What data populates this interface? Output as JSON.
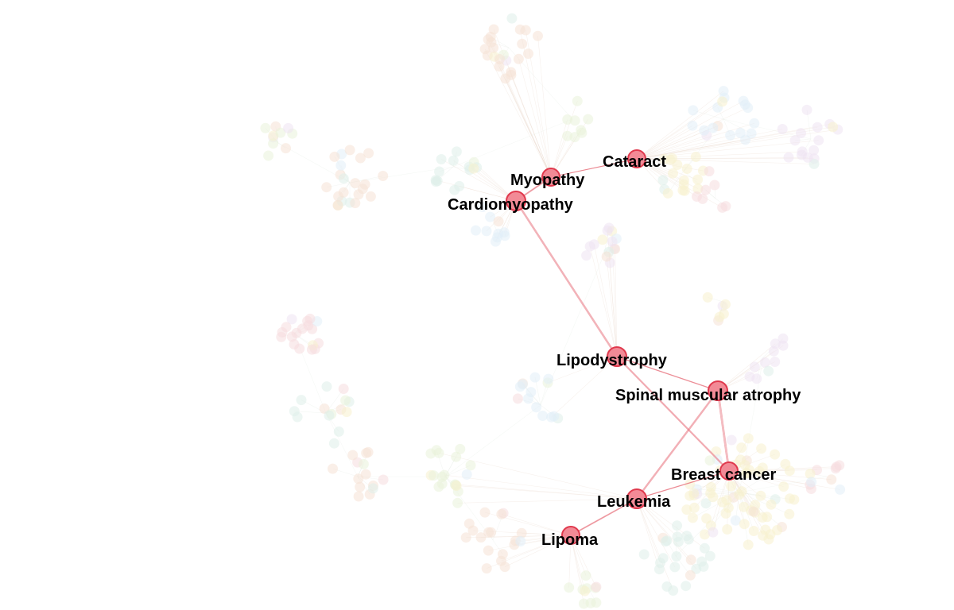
{
  "graph": {
    "highlighted_nodes": [
      {
        "id": "cataract",
        "label": "Cataract"
      },
      {
        "id": "myopathy",
        "label": "Myopathy"
      },
      {
        "id": "cardiomyopathy",
        "label": "Cardiomyopathy"
      },
      {
        "id": "lipodystrophy",
        "label": "Lipodystrophy"
      },
      {
        "id": "spinal-muscular-atrophy",
        "label": "Spinal muscular atrophy"
      },
      {
        "id": "breast-cancer",
        "label": "Breast cancer"
      },
      {
        "id": "leukemia",
        "label": "Leukemia"
      },
      {
        "id": "lipoma",
        "label": "Lipoma"
      }
    ],
    "highlighted_edges": [
      [
        "myopathy",
        "cataract"
      ],
      [
        "myopathy",
        "cardiomyopathy"
      ],
      [
        "cardiomyopathy",
        "lipodystrophy"
      ],
      [
        "lipodystrophy",
        "spinal-muscular-atrophy"
      ],
      [
        "lipodystrophy",
        "breast-cancer"
      ],
      [
        "spinal-muscular-atrophy",
        "breast-cancer"
      ],
      [
        "breast-cancer",
        "leukemia"
      ],
      [
        "leukemia",
        "lipoma"
      ],
      [
        "leukemia",
        "spinal-muscular-atrophy"
      ]
    ],
    "colors": {
      "hub_fill": "#f28a96",
      "hub_stroke": "#e0394d",
      "hub_edge": "#e8747f",
      "background_palette": [
        "#f6e3d6",
        "#eaf3db",
        "#e2eff9",
        "#efe4f3",
        "#f8f2cf",
        "#f7dde0",
        "#dff0ea"
      ]
    }
  }
}
